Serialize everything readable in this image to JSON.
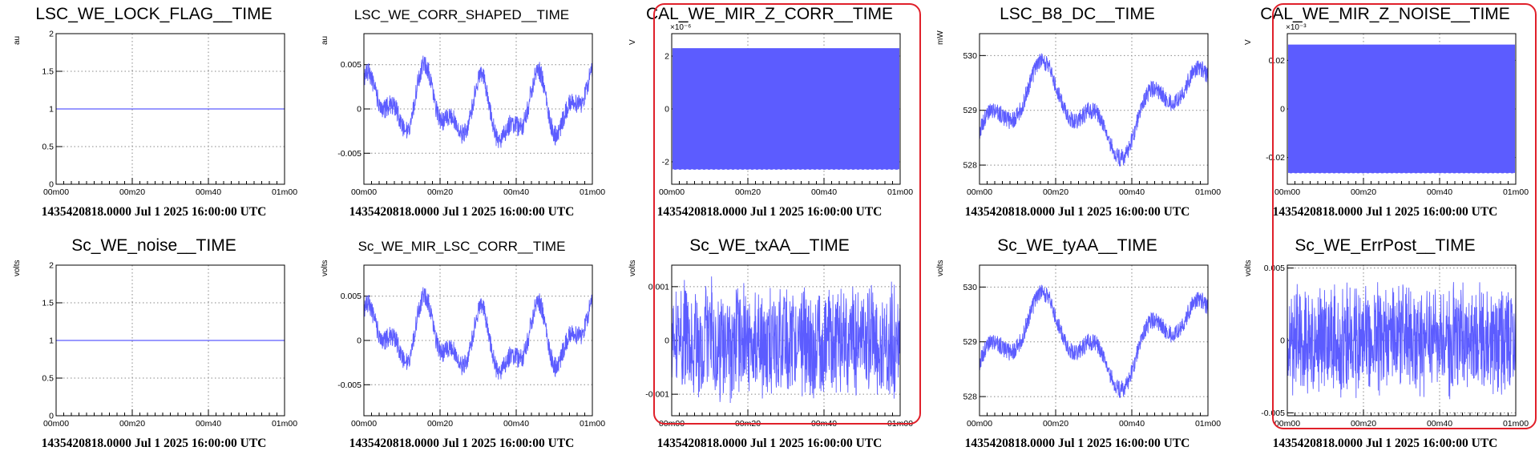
{
  "colors": {
    "trace": "#5c5cff",
    "highlight": "#e0202a",
    "grid": "#888888"
  },
  "time_labels": [
    "00m00",
    "00m20",
    "00m40",
    "01m00"
  ],
  "chart_data": [
    {
      "name": "LSC_WE_LOCK_FLAG__TIME",
      "ylabel": "au",
      "expo": "",
      "yticks": [
        "0",
        "0.5",
        "1",
        "1.5",
        "2"
      ],
      "ylim": [
        0,
        2
      ],
      "kind": "flat",
      "value": 1,
      "stamp": "1435420818.0000 Jul 1 2025 16:00:00 UTC",
      "highlight": false,
      "small": false
    },
    {
      "name": "LSC_WE_CORR_SHAPED__TIME",
      "ylabel": "au",
      "expo": "",
      "yticks": [
        "-0.005",
        "0",
        "0.005"
      ],
      "ylim": [
        -0.0085,
        0.0085
      ],
      "kind": "wave",
      "amp": 0.005,
      "seed": 3,
      "stamp": "1435420818.0000 Jul 1 2025 16:00:00 UTC",
      "highlight": false,
      "small": true
    },
    {
      "name": "CAL_WE_MIR_Z_CORR__TIME",
      "ylabel": "V",
      "expo": "×10⁻⁶",
      "yticks": [
        "-2",
        "0",
        "2"
      ],
      "ylim": [
        -2.85,
        2.85
      ],
      "kind": "band",
      "amp": 2.3,
      "stamp": "1435420818.0000 Jul 1 2025 16:00:00 UTC",
      "highlight": true,
      "small": false
    },
    {
      "name": "LSC_B8_DC__TIME",
      "ylabel": "mW",
      "expo": "",
      "yticks": [
        "528",
        "529",
        "530"
      ],
      "ylim": [
        527.65,
        530.4
      ],
      "kind": "drift",
      "base": 529,
      "amp": 1,
      "seed": 7,
      "stamp": "1435420818.0000 Jul 1 2025 16:00:00 UTC",
      "highlight": false,
      "small": false
    },
    {
      "name": "CAL_WE_MIR_Z_NOISE__TIME",
      "ylabel": "V",
      "expo": "×10⁻³",
      "yticks": [
        "-0.02",
        "0",
        "0.02"
      ],
      "ylim": [
        -0.031,
        0.031
      ],
      "kind": "band",
      "amp": 0.0265,
      "stamp": "1435420818.0000 Jul 1 2025 16:00:00 UTC",
      "highlight": true,
      "small": false
    },
    {
      "name": "Sc_WE_noise__TIME",
      "ylabel": "volts",
      "expo": "",
      "yticks": [
        "0",
        "0.5",
        "1",
        "1.5",
        "2"
      ],
      "ylim": [
        0,
        2
      ],
      "kind": "flat",
      "value": 1,
      "stamp": "1435420818.0000 Jul 1 2025 16:00:00 UTC",
      "highlight": false,
      "small": false
    },
    {
      "name": "Sc_WE_MIR_LSC_CORR__TIME",
      "ylabel": "volts",
      "expo": "",
      "yticks": [
        "-0.005",
        "0",
        "0.005"
      ],
      "ylim": [
        -0.0085,
        0.0085
      ],
      "kind": "wave",
      "amp": 0.005,
      "seed": 3,
      "stamp": "1435420818.0000 Jul 1 2025 16:00:00 UTC",
      "highlight": false,
      "small": true
    },
    {
      "name": "Sc_WE_txAA__TIME",
      "ylabel": "volts",
      "expo": "",
      "yticks": [
        "-0.001",
        "0",
        "0.001"
      ],
      "ylim": [
        -0.0014,
        0.0014
      ],
      "kind": "noise",
      "amp": 0.0012,
      "seed": 11,
      "stamp": "1435420818.0000 Jul 1 2025 16:00:00 UTC",
      "highlight": true,
      "small": false
    },
    {
      "name": "Sc_WE_tyAA__TIME",
      "ylabel": "volts",
      "expo": "",
      "yticks": [
        "528",
        "529",
        "530"
      ],
      "ylim": [
        527.65,
        530.4
      ],
      "kind": "drift",
      "base": 529,
      "amp": 1,
      "seed": 7,
      "stamp": "1435420818.0000 Jul 1 2025 16:00:00 UTC",
      "highlight": false,
      "small": false
    },
    {
      "name": "Sc_WE_ErrPost__TIME",
      "ylabel": "volts",
      "expo": "",
      "yticks": [
        "-0.005",
        "0",
        "0.005"
      ],
      "ylim": [
        -0.0052,
        0.0052
      ],
      "kind": "noise",
      "amp": 0.0042,
      "seed": 19,
      "stamp": "1435420818.0000 Jul 1 2025 16:00:00 UTC",
      "highlight": true,
      "small": false
    }
  ]
}
